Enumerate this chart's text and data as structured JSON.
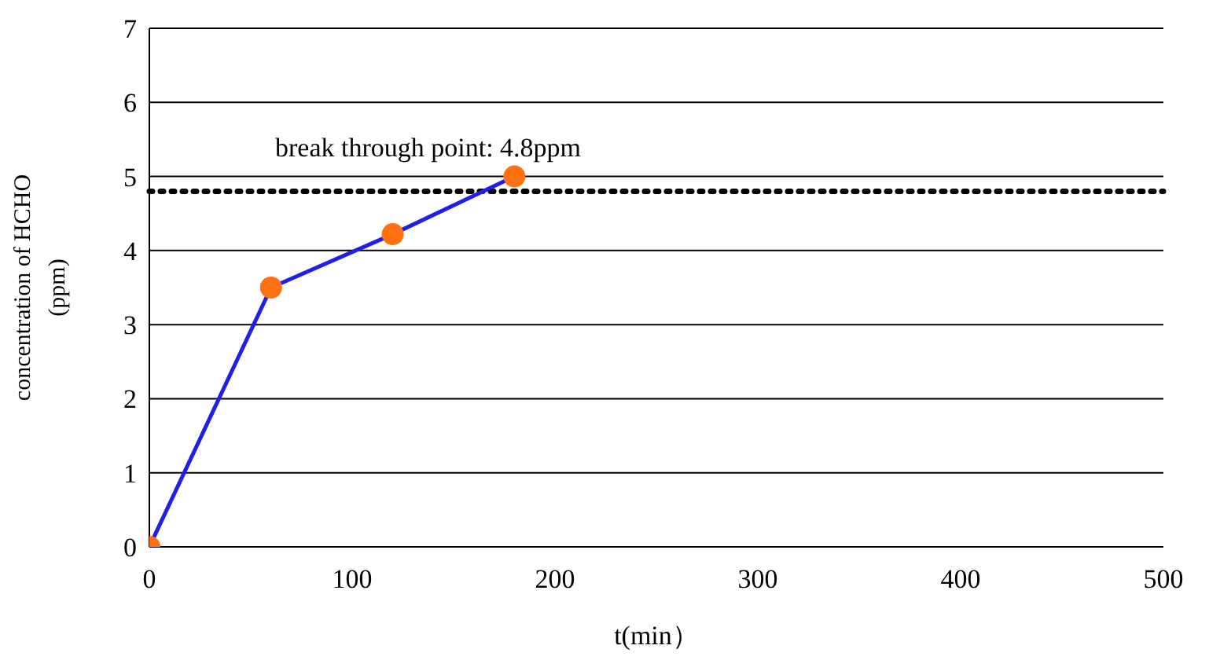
{
  "chart_data": {
    "type": "line",
    "xlabel": "t(min）",
    "ylabel": "concentration of HCHO\n(ppm)",
    "x": [
      0,
      60,
      120,
      180
    ],
    "series": [
      {
        "color": "#1f1fe6",
        "colors": [
          "#ff7010",
          "#ff7010",
          "#ff7010",
          "#ff7010"
        ],
        "values": [
          0,
          3.5,
          4.22,
          5.0
        ]
      }
    ],
    "xlim": [
      0,
      500
    ],
    "xticks": [
      0,
      100,
      200,
      300,
      400,
      500
    ],
    "ylim": [
      0,
      7
    ],
    "yticks": [
      0,
      1,
      2,
      3,
      4,
      5,
      6,
      7
    ],
    "grid": "y",
    "marker": "circle",
    "line_style": "solid",
    "legend": false,
    "ref_lines": [
      {
        "axis": "y",
        "value": 4.8,
        "label": "break through point: 4.8ppm",
        "color": "#000000",
        "line_style": "dotted"
      }
    ]
  }
}
